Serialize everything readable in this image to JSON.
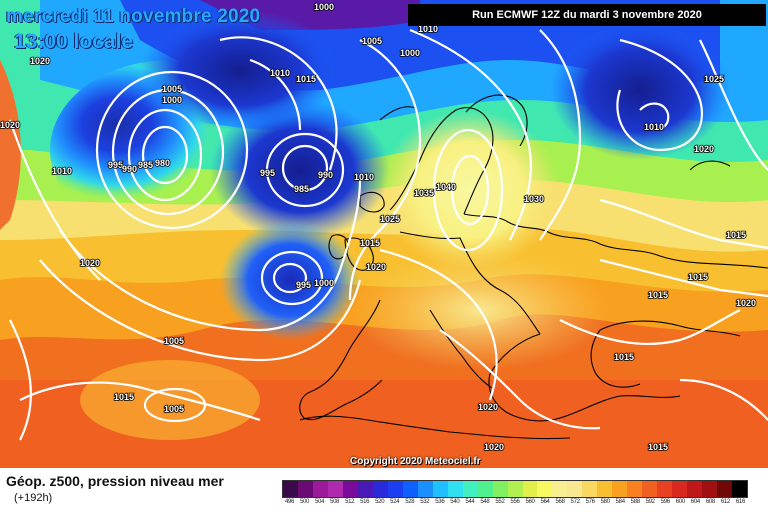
{
  "header": {
    "date": "mercredi 11 novembre 2020",
    "time": "13:00 locale",
    "run": "Run ECMWF 12Z du mardi 3 novembre 2020"
  },
  "footer": {
    "title": "Géop. z500, pression niveau mer",
    "forecast_step": "(+192h)",
    "copyright": "Copyright 2020 Meteociel.fr"
  },
  "colorbar": {
    "ticks": [
      "496",
      "500",
      "504",
      "508",
      "512",
      "516",
      "520",
      "524",
      "528",
      "532",
      "536",
      "540",
      "544",
      "548",
      "552",
      "556",
      "560",
      "564",
      "568",
      "572",
      "576",
      "580",
      "584",
      "588",
      "592",
      "596",
      "600",
      "604",
      "608",
      "612",
      "616"
    ],
    "colors": [
      "#3b0a4a",
      "#6a0a72",
      "#9a1a9a",
      "#b02ab0",
      "#7a0b9a",
      "#4a1ab8",
      "#2a2ad8",
      "#1a3ef0",
      "#1060ff",
      "#1a90ff",
      "#20c0ff",
      "#30e0f0",
      "#40f0c0",
      "#50f090",
      "#80f060",
      "#b0f050",
      "#e0f048",
      "#f8f860",
      "#f8f090",
      "#f8e890",
      "#f8d860",
      "#f8c030",
      "#f8a020",
      "#f88020",
      "#f06020",
      "#e84020",
      "#d82820",
      "#c01818",
      "#a01010",
      "#700808",
      "#000000"
    ]
  },
  "isobar_labels": [
    "1000",
    "1005",
    "1005",
    "1000",
    "995",
    "990",
    "985",
    "980",
    "995",
    "985",
    "990",
    "1010",
    "1015",
    "1020",
    "1025",
    "1010",
    "1020",
    "1010",
    "1010",
    "1015",
    "1005",
    "1000",
    "1010",
    "1030",
    "1020",
    "1015",
    "1015",
    "1015",
    "1015",
    "1020",
    "1040",
    "1035",
    "1020",
    "1025",
    "1020",
    "995",
    "1000",
    "1015",
    "1005",
    "1020",
    "1015",
    "1020"
  ]
}
